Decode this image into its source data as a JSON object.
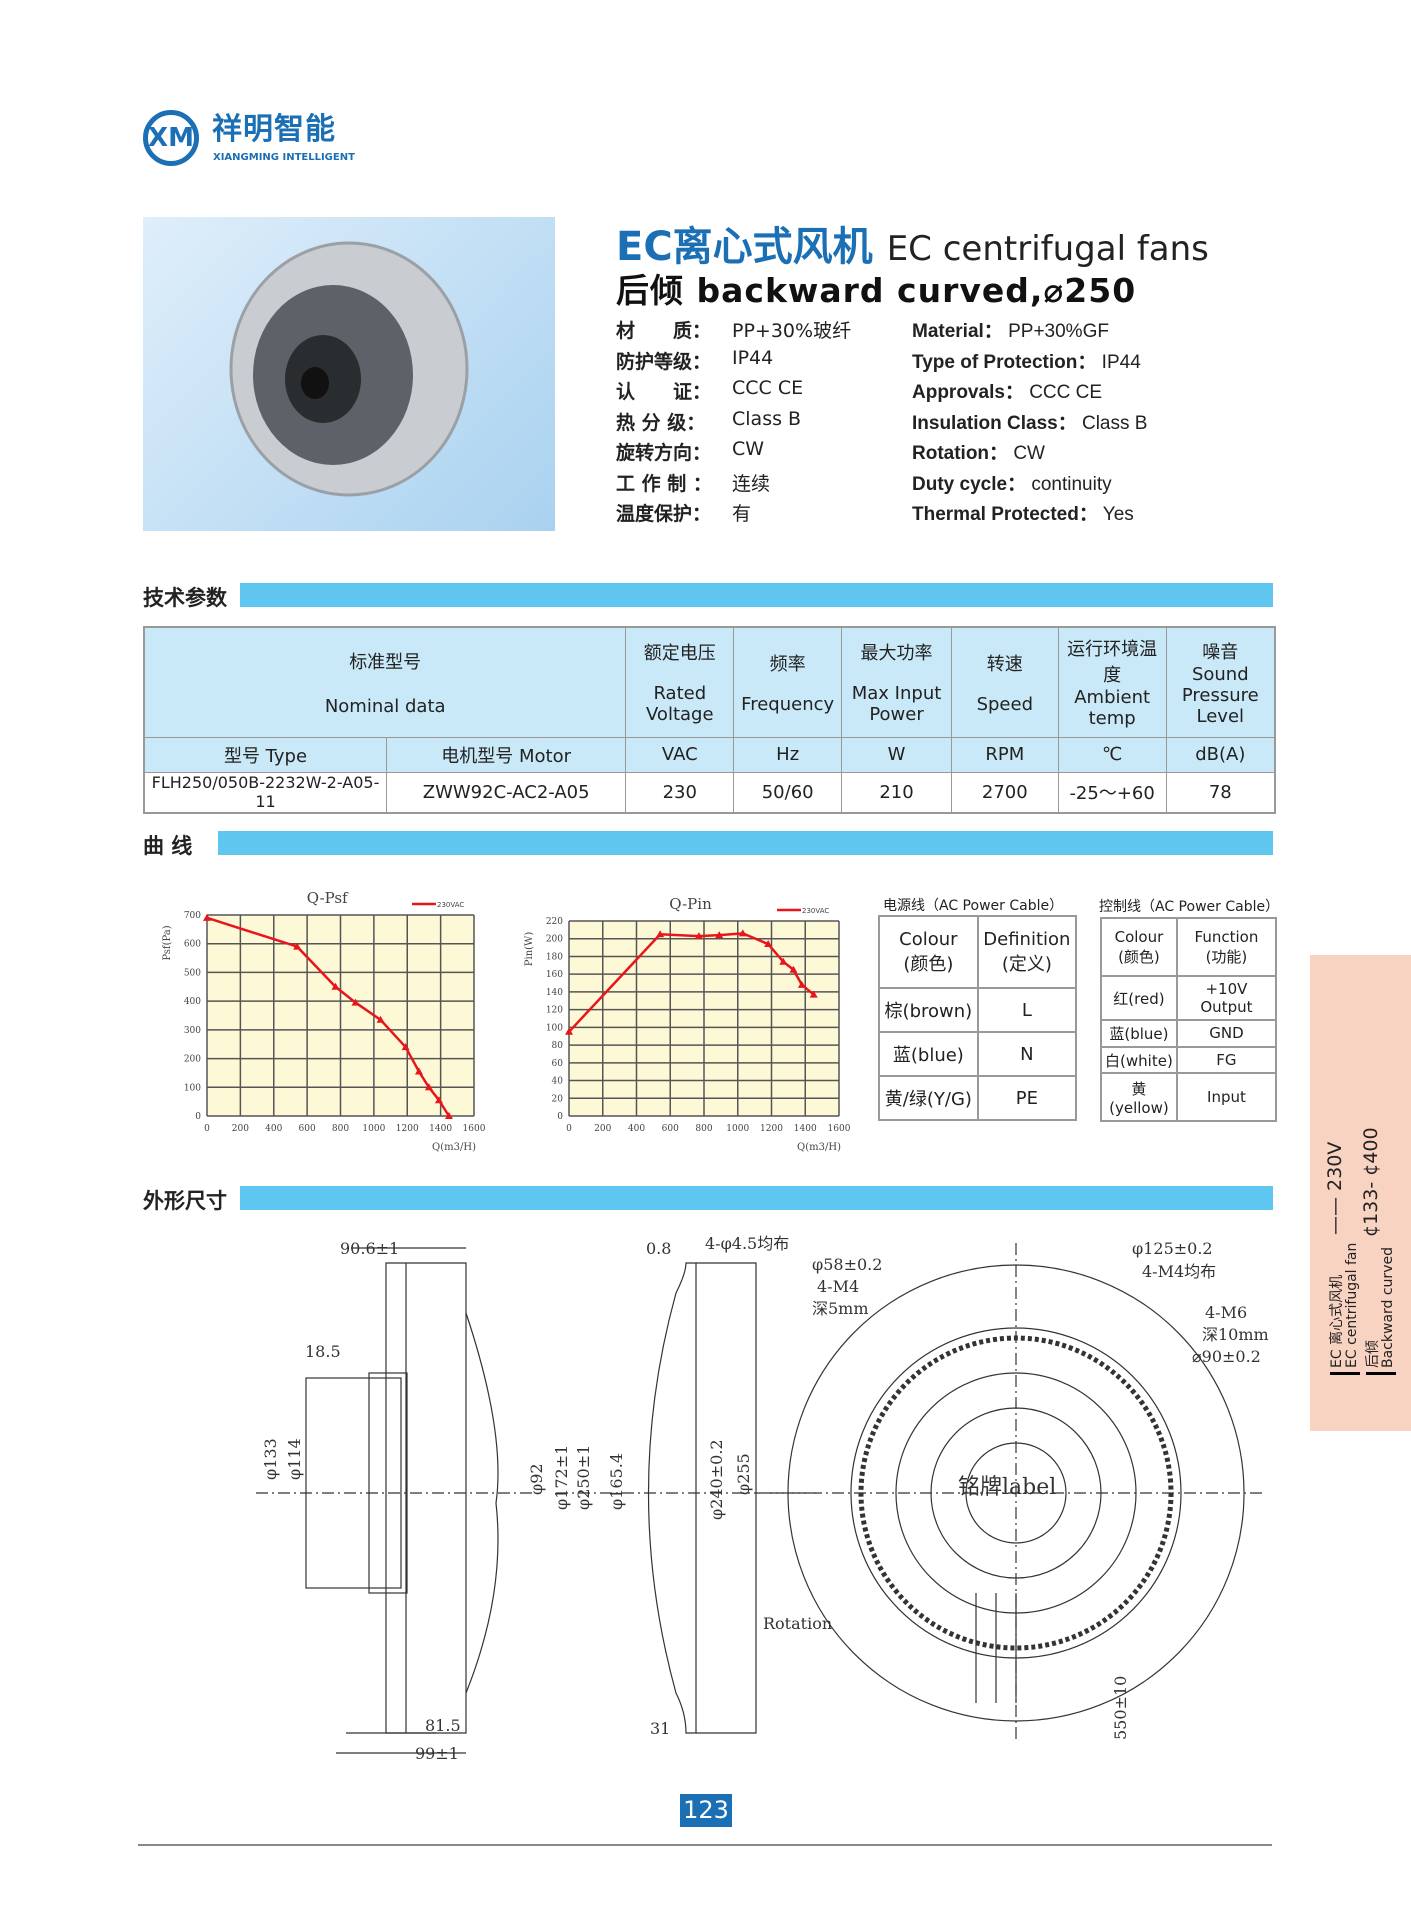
{
  "brand": {
    "logo_mark": "XM",
    "name_cn": "祥明智能",
    "name_en": "XIANGMING INTELLIGENT",
    "color": "#1b6fb5"
  },
  "header": {
    "title_cn": "EC离心式风机",
    "title_en": "EC centrifugal fans",
    "subtitle": "后倾  backward curved,⌀250"
  },
  "specs_cn": [
    {
      "label": "材　　质：",
      "value": "PP+30%玻纤"
    },
    {
      "label": "防护等级：",
      "value": "IP44"
    },
    {
      "label": "认　　证：",
      "value": "CCC  CE"
    },
    {
      "label": "热 分 级：",
      "value": "Class  B"
    },
    {
      "label": "旋转方向：",
      "value": "CW"
    },
    {
      "label": "工 作 制 ：",
      "value": "连续"
    },
    {
      "label": "温度保护：",
      "value": "有"
    }
  ],
  "specs_en": [
    {
      "label": "Material：",
      "value": "PP+30%GF"
    },
    {
      "label": "Type of Protection：",
      "value": "IP44"
    },
    {
      "label": "Approvals：",
      "value": "CCC  CE"
    },
    {
      "label": "Insulation Class：",
      "value": "Class  B"
    },
    {
      "label": "Rotation：",
      "value": "CW"
    },
    {
      "label": "Duty cycle：",
      "value": "continuity"
    },
    {
      "label": "Thermal  Protected：",
      "value": "Yes"
    }
  ],
  "sections": {
    "tech": "技术参数",
    "curves": "曲  线",
    "dims": "外形尺寸"
  },
  "params": {
    "nominal_cn": "标准型号",
    "nominal_en": "Nominal  data",
    "headers": [
      {
        "cn": "额定电压",
        "en": "Rated Voltage",
        "unit": "VAC"
      },
      {
        "cn": "频率",
        "en": "Frequency",
        "unit": "Hz"
      },
      {
        "cn": "最大功率",
        "en": "Max Input Power",
        "unit": "W"
      },
      {
        "cn": "转速",
        "en": "Speed",
        "unit": "RPM"
      },
      {
        "cn": "运行环境温度",
        "en": "Ambient temp",
        "unit": "℃"
      },
      {
        "cn": "噪音",
        "en": "Sound Pressure Level",
        "unit": "dB(A)"
      }
    ],
    "type_label": "型号 Type",
    "motor_label": "电机型号 Motor",
    "row": {
      "type": "FLH250/050B-2232W-2-A05-11",
      "motor": "ZWW92C-AC2-A05",
      "values": [
        "230",
        "50/60",
        "210",
        "2700",
        "-25～+60",
        "78"
      ]
    }
  },
  "chart_data": [
    {
      "type": "line",
      "title": "Q-Psf",
      "xlabel": "Q(m3/H)",
      "ylabel": "Psf(Pa)",
      "xlim": [
        0,
        1600
      ],
      "ylim": [
        0,
        700
      ],
      "xticks": [
        0,
        200,
        400,
        600,
        800,
        1000,
        1200,
        1400,
        1600
      ],
      "yticks": [
        0,
        100,
        200,
        300,
        400,
        500,
        600,
        700
      ],
      "grid": true,
      "legend_position": "top-right",
      "background": "#fdf8d6",
      "series": [
        {
          "name": "230VAC",
          "color": "#e8161c",
          "x": [
            0,
            540,
            770,
            890,
            1040,
            1190,
            1270,
            1330,
            1390,
            1450
          ],
          "y": [
            690,
            590,
            450,
            395,
            335,
            240,
            155,
            100,
            55,
            0
          ]
        }
      ]
    },
    {
      "type": "line",
      "title": "Q-Pin",
      "xlabel": "Q(m3/H)",
      "ylabel": "Pin(W)",
      "xlim": [
        0,
        1600
      ],
      "ylim": [
        0,
        220
      ],
      "xticks": [
        0,
        200,
        400,
        600,
        800,
        1000,
        1200,
        1400,
        1600
      ],
      "yticks": [
        0,
        20,
        40,
        60,
        80,
        100,
        120,
        140,
        160,
        180,
        200,
        220
      ],
      "grid": true,
      "legend_position": "top-right",
      "background": "#fdf8d6",
      "series": [
        {
          "name": "230VAC",
          "color": "#e8161c",
          "x": [
            0,
            540,
            770,
            890,
            1030,
            1180,
            1270,
            1330,
            1380,
            1450
          ],
          "y": [
            95,
            205,
            203,
            204,
            206,
            194,
            174,
            165,
            148,
            137
          ]
        }
      ]
    }
  ],
  "power_cable": {
    "caption": "电源线（AC Power Cable）",
    "headers": [
      "Colour\n(颜色)",
      "Definition\n(定义)"
    ],
    "rows": [
      [
        "棕(brown)",
        "L"
      ],
      [
        "蓝(blue)",
        "N"
      ],
      [
        "黄/绿(Y/G)",
        "PE"
      ]
    ]
  },
  "control_cable": {
    "caption": "控制线（AC Power Cable）",
    "headers": [
      "Colour\n(颜色)",
      "Function\n(功能)"
    ],
    "rows": [
      [
        "红(red)",
        "+10V Output"
      ],
      [
        "蓝(blue)",
        "GND"
      ],
      [
        "白(white)",
        "FG"
      ],
      [
        "黄(yellow)",
        "Input"
      ]
    ]
  },
  "dims": {
    "d1": "90.6±1",
    "d2": "18.5",
    "d3": "φ133",
    "d4": "φ114",
    "d5": "φ92",
    "d6": "φ172±1",
    "d7": "φ250±1",
    "d8": "81.5",
    "d9": "99±1",
    "d10": "0.8",
    "d11": "4-φ4.5均布",
    "d12": "φ165.4",
    "d13": "φ240±0.2",
    "d14": "φ255",
    "d15": "31",
    "d16": "φ58±0.2",
    "d17": "4-M4",
    "d18": "深5mm",
    "d19": "φ125±0.2",
    "d20": "4-M4均布",
    "d21": "4-M6",
    "d22": "深10mm",
    "d23": "⌀90±0.2",
    "label": "铭牌label",
    "rotation": "Rotation",
    "d24": "550±10"
  },
  "side_tab": {
    "voltage": "230V",
    "range": "¢133- ¢400",
    "cn1": "EC 离心式风机",
    "en1": "EC centrifugal fan",
    "cn2": "后倾",
    "en2": "Backward curved"
  },
  "page_number": "123"
}
